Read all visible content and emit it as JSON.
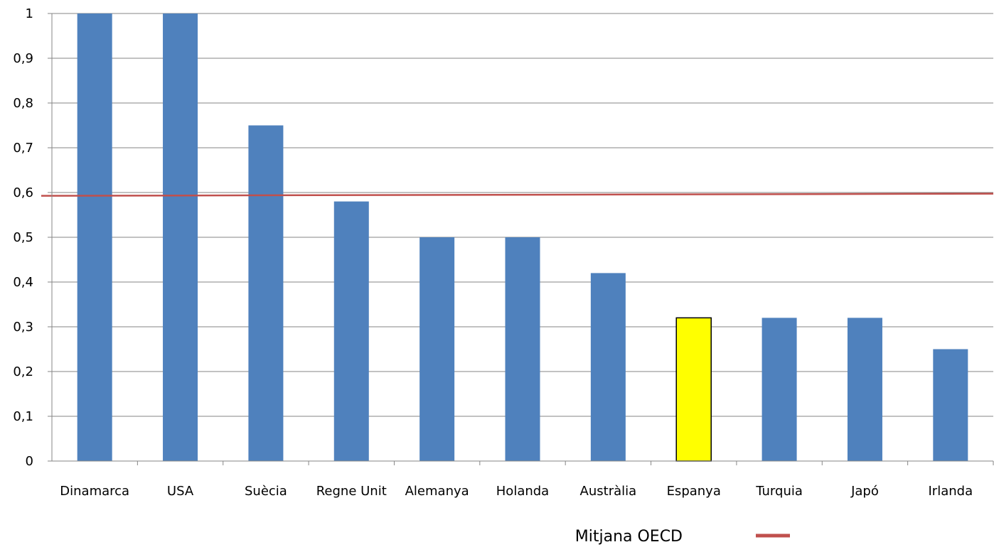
{
  "chart_data": {
    "type": "bar",
    "categories": [
      "Dinamarca",
      "USA",
      "Suècia",
      "Regne Unit",
      "Alemanya",
      "Holanda",
      "Austràlia",
      "Espanya",
      "Turquia",
      "Japó",
      "Irlanda"
    ],
    "values": [
      1.0,
      1.0,
      0.75,
      0.58,
      0.5,
      0.5,
      0.42,
      0.32,
      0.32,
      0.32,
      0.25
    ],
    "bar_colors": [
      "#4F81BD",
      "#4F81BD",
      "#4F81BD",
      "#4F81BD",
      "#4F81BD",
      "#4F81BD",
      "#4F81BD",
      "#FFFF00",
      "#4F81BD",
      "#4F81BD",
      "#4F81BD"
    ],
    "highlight": "Espanya",
    "reference_line": {
      "name": "Mitjana OECD",
      "value": 0.595,
      "color": "#C0504D"
    },
    "yticks": [
      "0",
      "0,1",
      "0,2",
      "0,3",
      "0,4",
      "0,5",
      "0,6",
      "0,7",
      "0,8",
      "0,9",
      "1"
    ],
    "ylim": [
      0,
      1
    ],
    "grid": true,
    "legend_position": "bottom-right",
    "title": "",
    "xlabel": "",
    "ylabel": ""
  }
}
